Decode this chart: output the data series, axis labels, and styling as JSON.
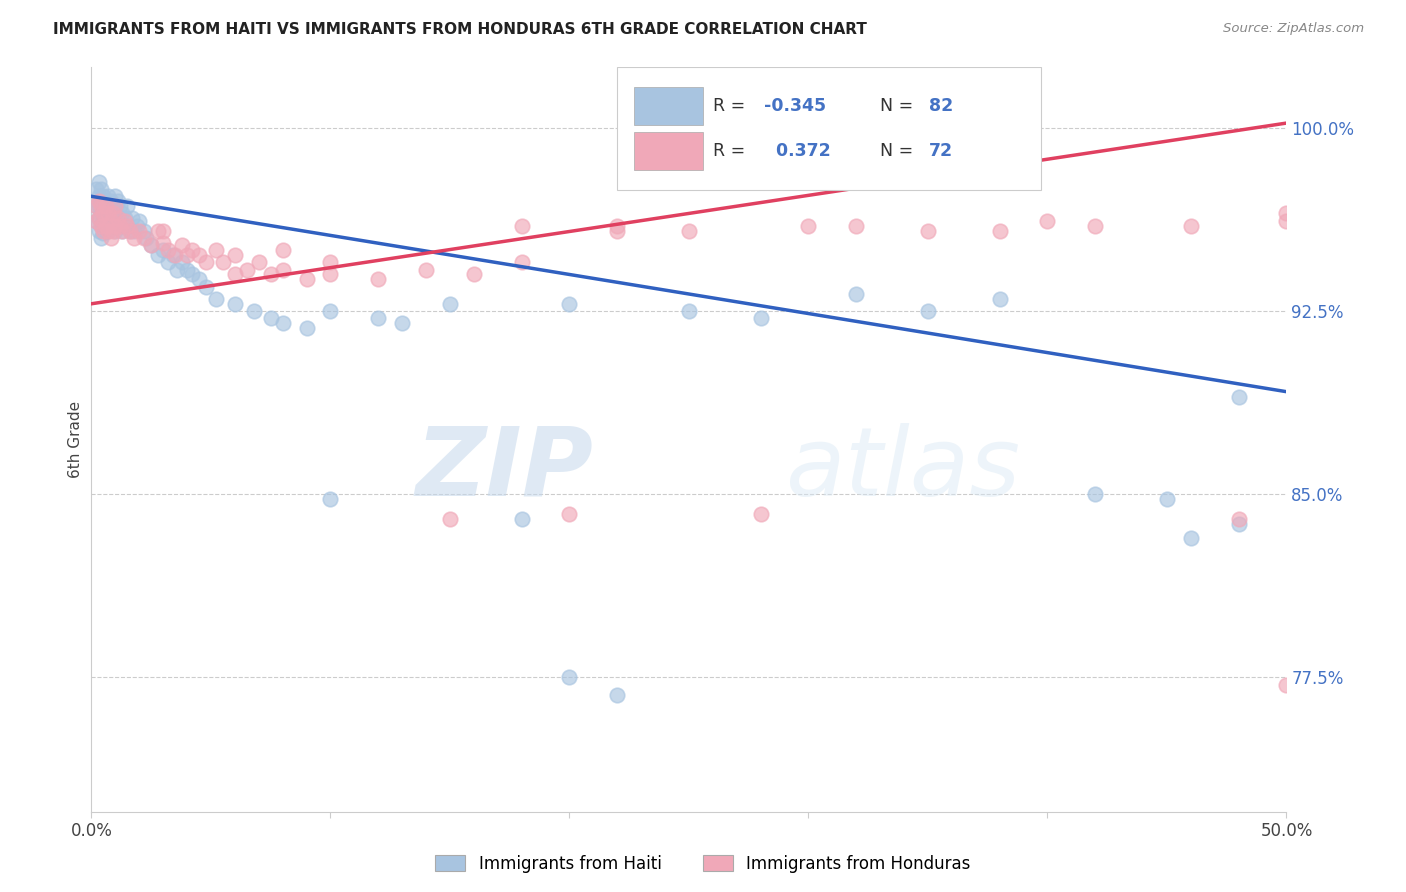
{
  "title": "IMMIGRANTS FROM HAITI VS IMMIGRANTS FROM HONDURAS 6TH GRADE CORRELATION CHART",
  "source": "Source: ZipAtlas.com",
  "ylabel": "6th Grade",
  "xlim": [
    0.0,
    0.5
  ],
  "ylim": [
    0.72,
    1.025
  ],
  "x_ticks": [
    0.0,
    0.1,
    0.2,
    0.3,
    0.4,
    0.5
  ],
  "x_tick_labels": [
    "0.0%",
    "",
    "",
    "",
    "",
    "50.0%"
  ],
  "y_tick_labels_right": [
    "100.0%",
    "92.5%",
    "85.0%",
    "77.5%"
  ],
  "y_ticks_right": [
    1.0,
    0.925,
    0.85,
    0.775
  ],
  "haiti_R": -0.345,
  "haiti_N": 82,
  "honduras_R": 0.372,
  "honduras_N": 72,
  "haiti_color": "#a8c4e0",
  "honduras_color": "#f0a8b8",
  "haiti_line_color": "#3060c0",
  "honduras_line_color": "#e04060",
  "haiti_line_x": [
    0.0,
    0.5
  ],
  "haiti_line_y": [
    0.972,
    0.892
  ],
  "honduras_line_x": [
    0.0,
    0.5
  ],
  "honduras_line_y": [
    0.928,
    1.002
  ],
  "watermark_zip": "ZIP",
  "watermark_atlas": "atlas",
  "haiti_scatter_x": [
    0.002,
    0.002,
    0.002,
    0.003,
    0.003,
    0.003,
    0.003,
    0.003,
    0.004,
    0.004,
    0.004,
    0.004,
    0.004,
    0.005,
    0.005,
    0.005,
    0.005,
    0.006,
    0.006,
    0.006,
    0.007,
    0.007,
    0.007,
    0.008,
    0.008,
    0.009,
    0.009,
    0.01,
    0.01,
    0.01,
    0.011,
    0.011,
    0.012,
    0.012,
    0.013,
    0.013,
    0.014,
    0.015,
    0.015,
    0.016,
    0.017,
    0.018,
    0.019,
    0.02,
    0.022,
    0.023,
    0.025,
    0.028,
    0.03,
    0.032,
    0.034,
    0.036,
    0.038,
    0.04,
    0.042,
    0.045,
    0.048,
    0.052,
    0.06,
    0.068,
    0.075,
    0.08,
    0.09,
    0.1,
    0.12,
    0.13,
    0.15,
    0.2,
    0.25,
    0.28,
    0.32,
    0.35,
    0.38,
    0.42,
    0.45,
    0.46,
    0.48,
    0.1,
    0.18,
    0.2,
    0.22,
    0.48
  ],
  "haiti_scatter_y": [
    0.975,
    0.968,
    0.962,
    0.978,
    0.972,
    0.968,
    0.963,
    0.958,
    0.975,
    0.97,
    0.965,
    0.96,
    0.955,
    0.972,
    0.968,
    0.962,
    0.957,
    0.97,
    0.965,
    0.958,
    0.972,
    0.965,
    0.958,
    0.97,
    0.963,
    0.968,
    0.96,
    0.972,
    0.965,
    0.958,
    0.97,
    0.962,
    0.968,
    0.96,
    0.965,
    0.958,
    0.963,
    0.968,
    0.96,
    0.958,
    0.963,
    0.958,
    0.96,
    0.962,
    0.958,
    0.955,
    0.952,
    0.948,
    0.95,
    0.945,
    0.948,
    0.942,
    0.945,
    0.942,
    0.94,
    0.938,
    0.935,
    0.93,
    0.928,
    0.925,
    0.922,
    0.92,
    0.918,
    0.925,
    0.922,
    0.92,
    0.928,
    0.928,
    0.925,
    0.922,
    0.932,
    0.925,
    0.93,
    0.85,
    0.848,
    0.832,
    0.838,
    0.848,
    0.84,
    0.775,
    0.768,
    0.89
  ],
  "honduras_scatter_x": [
    0.002,
    0.002,
    0.003,
    0.003,
    0.004,
    0.004,
    0.005,
    0.005,
    0.006,
    0.006,
    0.007,
    0.007,
    0.008,
    0.008,
    0.009,
    0.009,
    0.01,
    0.01,
    0.011,
    0.012,
    0.013,
    0.014,
    0.015,
    0.016,
    0.018,
    0.02,
    0.022,
    0.025,
    0.028,
    0.03,
    0.032,
    0.035,
    0.038,
    0.04,
    0.042,
    0.045,
    0.048,
    0.052,
    0.055,
    0.06,
    0.065,
    0.07,
    0.075,
    0.08,
    0.09,
    0.1,
    0.12,
    0.14,
    0.16,
    0.18,
    0.2,
    0.22,
    0.03,
    0.06,
    0.08,
    0.1,
    0.25,
    0.3,
    0.35,
    0.4,
    0.15,
    0.18,
    0.22,
    0.28,
    0.32,
    0.38,
    0.42,
    0.46,
    0.48,
    0.5,
    0.5,
    0.5
  ],
  "honduras_scatter_y": [
    0.968,
    0.962,
    0.97,
    0.963,
    0.968,
    0.96,
    0.965,
    0.958,
    0.968,
    0.96,
    0.965,
    0.958,
    0.962,
    0.955,
    0.965,
    0.958,
    0.968,
    0.96,
    0.963,
    0.96,
    0.958,
    0.962,
    0.96,
    0.958,
    0.955,
    0.958,
    0.955,
    0.952,
    0.958,
    0.953,
    0.95,
    0.948,
    0.952,
    0.948,
    0.95,
    0.948,
    0.945,
    0.95,
    0.945,
    0.948,
    0.942,
    0.945,
    0.94,
    0.942,
    0.938,
    0.94,
    0.938,
    0.942,
    0.94,
    0.945,
    0.842,
    0.958,
    0.958,
    0.94,
    0.95,
    0.945,
    0.958,
    0.96,
    0.958,
    0.962,
    0.84,
    0.96,
    0.96,
    0.842,
    0.96,
    0.958,
    0.96,
    0.96,
    0.84,
    0.965,
    0.962,
    0.772
  ]
}
